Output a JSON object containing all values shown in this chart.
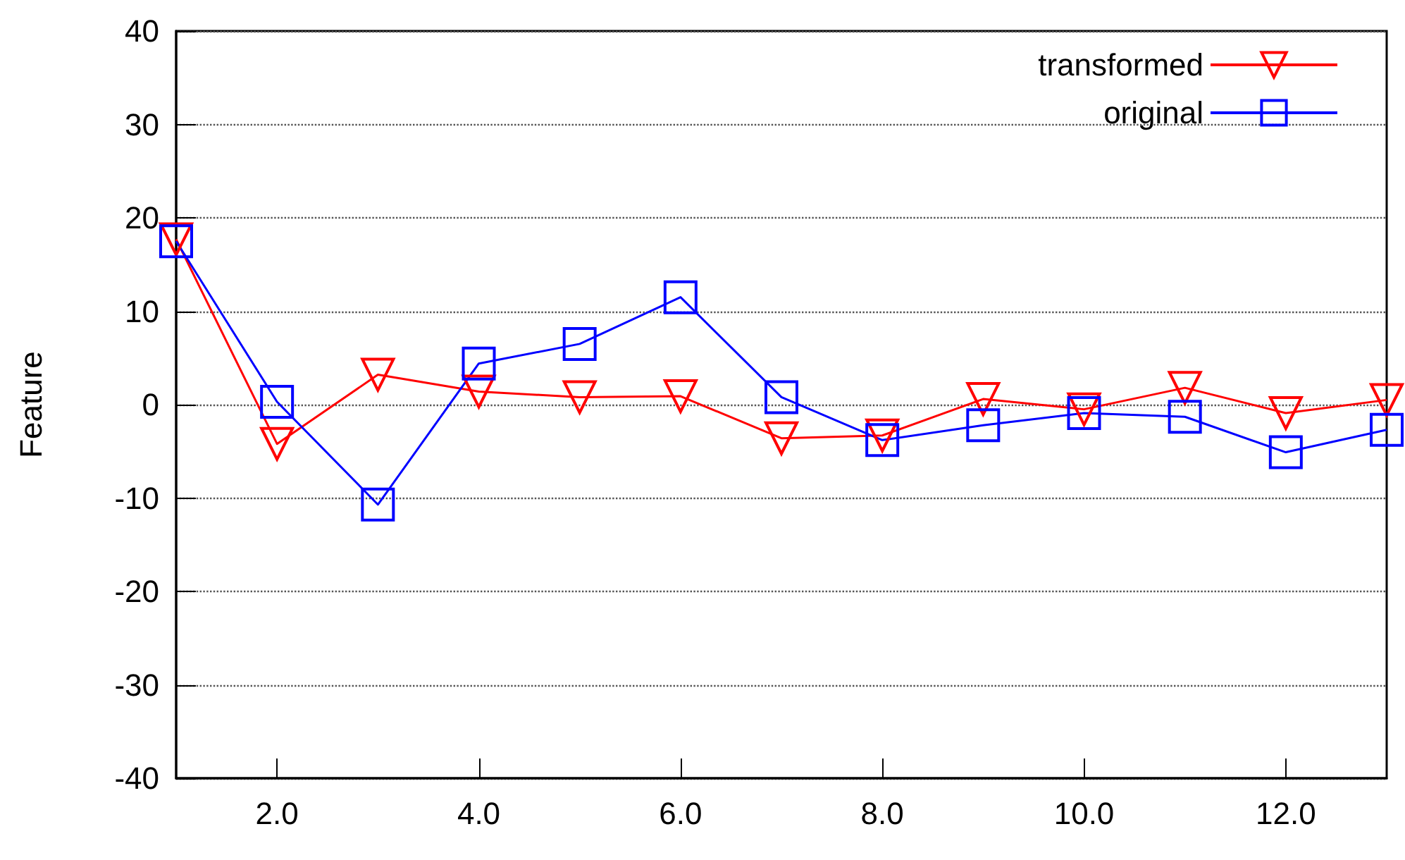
{
  "chart_data": {
    "type": "line",
    "ylabel": "Feature",
    "x": [
      1,
      2,
      3,
      4,
      5,
      6,
      7,
      8,
      9,
      10,
      11,
      12,
      13
    ],
    "series": [
      {
        "name": "transformed",
        "color": "#ff0000",
        "marker": "triangle",
        "values": [
          17.7,
          -4.2,
          3.2,
          1.4,
          0.8,
          0.9,
          -3.6,
          -3.3,
          0.6,
          -0.5,
          1.8,
          -0.9,
          0.5
        ]
      },
      {
        "name": "original",
        "color": "#0000ff",
        "marker": "square",
        "values": [
          17.5,
          0.3,
          -10.7,
          4.4,
          6.5,
          11.5,
          0.8,
          -3.8,
          -2.2,
          -0.9,
          -1.3,
          -5.1,
          -2.7
        ]
      }
    ],
    "xlim": [
      1,
      13
    ],
    "xticks": [
      {
        "value": 2,
        "label": "2.0"
      },
      {
        "value": 4,
        "label": "4.0"
      },
      {
        "value": 6,
        "label": "6.0"
      },
      {
        "value": 8,
        "label": "8.0"
      },
      {
        "value": 10,
        "label": "10.0"
      },
      {
        "value": 12,
        "label": "12.0"
      }
    ],
    "ylim": [
      -40,
      40
    ],
    "yticks": [
      -40,
      -30,
      -20,
      -10,
      0,
      10,
      20,
      30,
      40
    ],
    "grid": "y",
    "legend": "top right",
    "line_style": "solid"
  }
}
